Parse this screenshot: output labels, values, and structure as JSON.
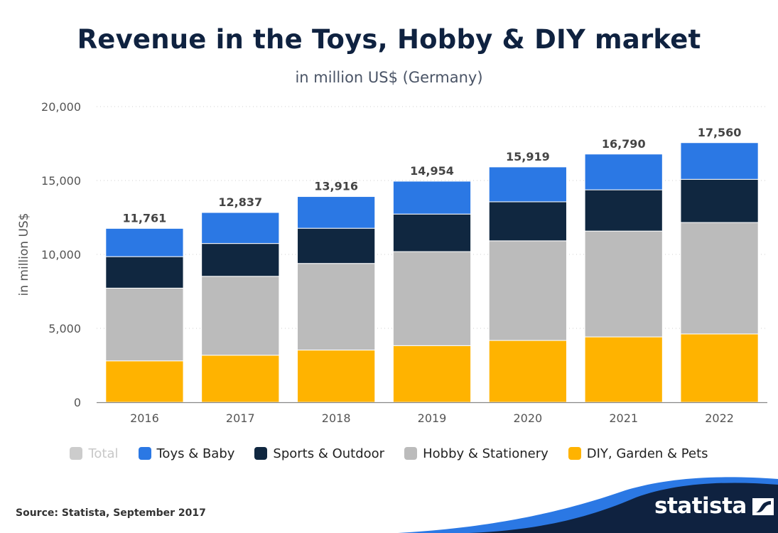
{
  "title": "Revenue in the Toys, Hobby & DIY market",
  "subtitle": "in million US$ (Germany)",
  "source": "Source: Statista, September 2017",
  "brand": "statista",
  "colors": {
    "total": "#cccccc",
    "toys_baby": "#2b78e4",
    "sports_outdoor": "#102740",
    "hobby_stationery": "#bbbbbb",
    "diy_garden_pets": "#ffb300",
    "title": "#0f2240",
    "brand_dark": "#0f2240",
    "brand_blue": "#2b78e4"
  },
  "chart_data": {
    "type": "bar",
    "stacked": true,
    "categories": [
      "2016",
      "2017",
      "2018",
      "2019",
      "2020",
      "2021",
      "2022"
    ],
    "ylabel": "in million US$",
    "ylim": [
      0,
      20000
    ],
    "yticks": [
      "0",
      "5,000",
      "10,000",
      "15,000",
      "20,000"
    ],
    "ytick_values": [
      0,
      5000,
      10000,
      15000,
      20000
    ],
    "grid": true,
    "legend_position": "bottom",
    "series": [
      {
        "name": "DIY, Garden & Pets",
        "key": "diy_garden_pets",
        "values": [
          2800,
          3180,
          3530,
          3830,
          4180,
          4420,
          4620
        ]
      },
      {
        "name": "Hobby & Stationery",
        "key": "hobby_stationery",
        "values": [
          4920,
          5340,
          5860,
          6360,
          6740,
          7160,
          7540
        ]
      },
      {
        "name": "Sports & Outdoor",
        "key": "sports_outdoor",
        "values": [
          2130,
          2220,
          2380,
          2540,
          2640,
          2790,
          2920
        ]
      },
      {
        "name": "Toys & Baby",
        "key": "toys_baby",
        "values": [
          1911,
          2097,
          2146,
          2224,
          2359,
          2420,
          2480
        ]
      }
    ],
    "totals": [
      11761,
      12837,
      13916,
      14954,
      15919,
      16790,
      17560
    ],
    "total_labels": [
      "11,761",
      "12,837",
      "13,916",
      "14,954",
      "15,919",
      "16,790",
      "17,560"
    ],
    "legend": [
      {
        "label": "Total",
        "key": "total",
        "muted": true
      },
      {
        "label": "Toys & Baby",
        "key": "toys_baby",
        "muted": false
      },
      {
        "label": "Sports & Outdoor",
        "key": "sports_outdoor",
        "muted": false
      },
      {
        "label": "Hobby & Stationery",
        "key": "hobby_stationery",
        "muted": false
      },
      {
        "label": "DIY, Garden & Pets",
        "key": "diy_garden_pets",
        "muted": false
      }
    ]
  }
}
